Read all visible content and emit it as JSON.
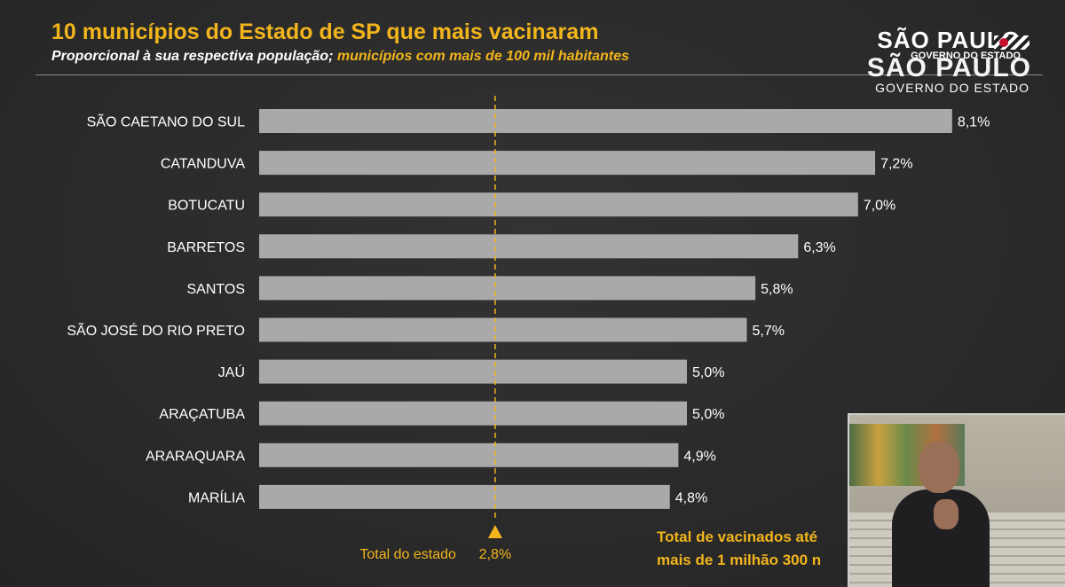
{
  "header": {
    "title": "10 municípios do Estado de SP que mais vacinaram",
    "subtitle_white": "Proporcional à sua respectiva população;",
    "subtitle_yellow": "municípios com mais de 100 mil habitantes"
  },
  "logo": {
    "line1": "SÃO PAULO",
    "line2": "GOVERNO DO ESTADO",
    "line3": "SÃO PAULO",
    "line4": "GOVERNO DO ESTADO"
  },
  "footer": {
    "line1": "Total de vacinados até",
    "line2": "mais de 1 milhão 300 n"
  },
  "colors": {
    "accent": "#f2b51c",
    "bar": "#a9a9a9",
    "text": "#ffffff",
    "background": "#2b2b2b"
  },
  "chart_data": {
    "type": "bar",
    "orientation": "horizontal",
    "categories": [
      "SÃO CAETANO DO SUL",
      "CATANDUVA",
      "BOTUCATU",
      "BARRETOS",
      "SANTOS",
      "SÃO JOSÉ DO RIO PRETO",
      "JAÚ",
      "ARAÇATUBA",
      "ARARAQUARA",
      "MARÍLIA"
    ],
    "values": [
      8.1,
      7.2,
      7.0,
      6.3,
      5.8,
      5.7,
      5.0,
      5.0,
      4.9,
      4.8
    ],
    "value_labels": [
      "8,1%",
      "7,2%",
      "7,0%",
      "6,3%",
      "5,8%",
      "5,7%",
      "5,0%",
      "5,0%",
      "4,9%",
      "4,8%"
    ],
    "reference": {
      "label": "Total do estado",
      "value": 2.8,
      "value_label": "2,8%"
    },
    "grid": false,
    "legend": "none"
  }
}
